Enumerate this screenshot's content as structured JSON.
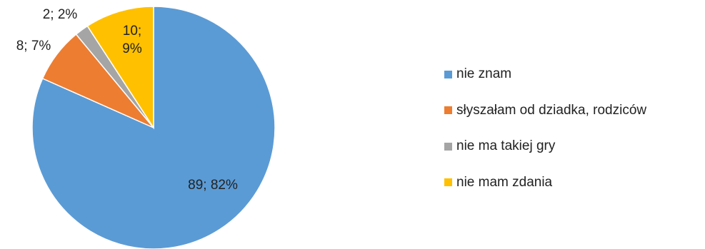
{
  "chart_data": {
    "type": "pie",
    "categories": [
      "nie znam",
      "słyszałam od dziadka, rodziców",
      "nie ma takiej gry",
      "nie mam zdania"
    ],
    "values": [
      89,
      8,
      2,
      10
    ],
    "percents": [
      "82%",
      "7%",
      "2%",
      "9%"
    ],
    "data_labels": [
      {
        "lines": [
          "89; 82%"
        ]
      },
      {
        "lines": [
          "8; 7%"
        ]
      },
      {
        "lines": [
          "2; 2%"
        ]
      },
      {
        "lines": [
          "10;",
          "9%"
        ]
      }
    ],
    "colors": [
      "#5b9bd5",
      "#ed7d31",
      "#a5a5a5",
      "#ffc000"
    ],
    "legend_position": "right",
    "start_angle": "12 o'clock",
    "direction": "clockwise"
  }
}
